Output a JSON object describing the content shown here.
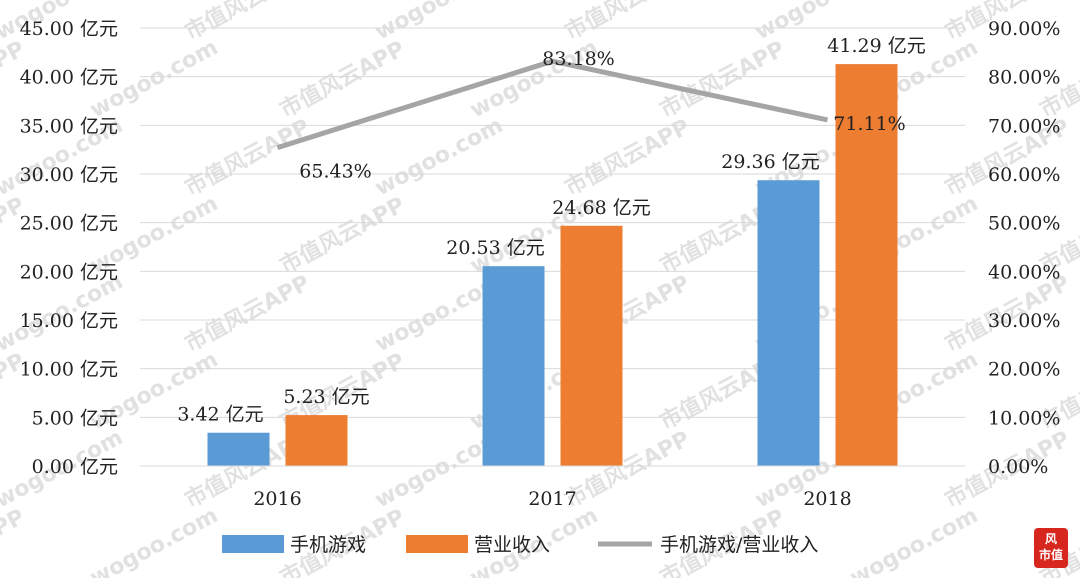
{
  "chart_data": {
    "type": "bar",
    "categories": [
      "2016",
      "2017",
      "2018"
    ],
    "series": [
      {
        "name": "手机游戏",
        "kind": "bar",
        "axis": "left",
        "color": "#5b9bd5",
        "values": [
          3.42,
          20.53,
          29.36
        ],
        "labels": [
          "3.42 亿元",
          "20.53 亿元",
          "29.36 亿元"
        ]
      },
      {
        "name": "营业收入",
        "kind": "bar",
        "axis": "left",
        "color": "#ed7d31",
        "values": [
          5.23,
          24.68,
          41.29
        ],
        "labels": [
          "5.23 亿元",
          "24.68 亿元",
          "41.29 亿元"
        ]
      },
      {
        "name": "手机游戏/营业收入",
        "kind": "line",
        "axis": "right",
        "color": "#a5a5a5",
        "values": [
          65.43,
          83.18,
          71.11
        ],
        "labels": [
          "65.43%",
          "83.18%",
          "71.11%"
        ]
      }
    ],
    "ylim_left": [
      0,
      45
    ],
    "ylim_right": [
      0,
      90
    ],
    "yticks_left": [
      "0.00 亿元",
      "5.00 亿元",
      "10.00 亿元",
      "15.00 亿元",
      "20.00 亿元",
      "25.00 亿元",
      "30.00 亿元",
      "35.00 亿元",
      "40.00 亿元",
      "45.00 亿元"
    ],
    "yticks_right": [
      "0.00%",
      "10.00%",
      "20.00%",
      "30.00%",
      "40.00%",
      "50.00%",
      "60.00%",
      "70.00%",
      "80.00%",
      "90.00%"
    ],
    "grid": true,
    "legend": "bottom"
  },
  "watermark": {
    "texts": [
      "市值风云APP",
      "wogoo.com"
    ]
  },
  "logo": {
    "line1": "风",
    "line2": "市值"
  }
}
